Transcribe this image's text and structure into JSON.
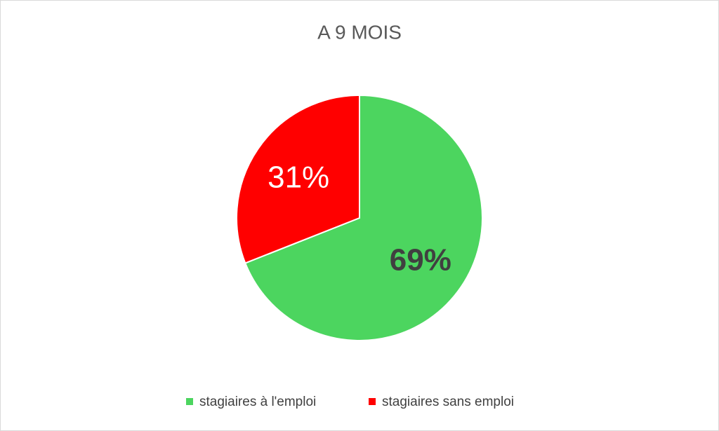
{
  "chart_data": {
    "type": "pie",
    "title": "A 9 MOIS",
    "categories": [
      "stagiaires à l'emploi",
      "stagiaires sans emploi"
    ],
    "values": [
      69,
      31
    ],
    "value_labels": [
      "69%",
      "31%"
    ],
    "colors": [
      "#4cd55f",
      "#ff0000"
    ],
    "legend": "bottom"
  }
}
